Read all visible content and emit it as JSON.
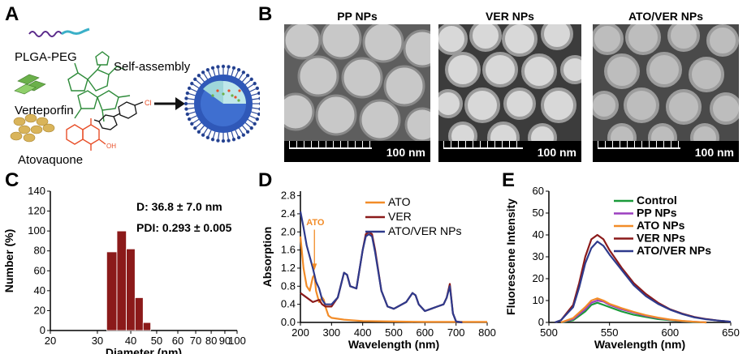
{
  "panels": {
    "A": "A",
    "B": "B",
    "C": "C",
    "D": "D",
    "E": "E"
  },
  "schematic": {
    "plga_label": "PLGA-PEG",
    "vp_label": "Verteporfin",
    "ato_label": "Atovaquone",
    "assembly_label": "Self-assembly",
    "cl": "Cl",
    "oh": "OH"
  },
  "tem": [
    {
      "title": "PP NPs",
      "scale": "100 nm"
    },
    {
      "title": "VER NPs",
      "scale": "100 nm"
    },
    {
      "title": "ATO/VER NPs",
      "scale": "100 nm"
    }
  ],
  "colors": {
    "bar": "#8b1a1a",
    "ato": "#f28c28",
    "ver": "#8b1a1a",
    "atover": "#2e3a8c",
    "control": "#1a9a3a",
    "pp": "#9b3fbf"
  },
  "chart_data": [
    {
      "type": "bar",
      "panel": "C",
      "categories": [
        34,
        37,
        40,
        43,
        46
      ],
      "values": [
        79,
        100,
        82,
        33,
        8
      ],
      "xlabel": "Diameter (nm)",
      "ylabel": "Number (%)",
      "xscale": "log",
      "xticks": [
        "20",
        "30",
        "40",
        "50",
        "60",
        "70",
        "80",
        "90",
        "100"
      ],
      "yticks": [
        "0",
        "20",
        "40",
        "60",
        "80",
        "100",
        "120",
        "140"
      ],
      "ylim": [
        0,
        140
      ],
      "annotations": [
        "D: 36.8 ± 7.0 nm",
        "PDI: 0.293 ± 0.005"
      ]
    },
    {
      "type": "line",
      "panel": "D",
      "xlabel": "Wavelength (nm)",
      "ylabel": "Absorption",
      "xlim": [
        200,
        800
      ],
      "ylim": [
        0,
        2.9
      ],
      "xticks": [
        "200",
        "300",
        "400",
        "500",
        "600",
        "700",
        "800"
      ],
      "yticks": [
        "0.0",
        "0.4",
        "0.8",
        "1.2",
        "1.6",
        "2.0",
        "2.4",
        "2.8"
      ],
      "annotation": "ATO",
      "series": [
        {
          "name": "ATO",
          "x": [
            200,
            210,
            220,
            230,
            240,
            245,
            250,
            260,
            270,
            275,
            280,
            290,
            300,
            320,
            340,
            360,
            400,
            500,
            600,
            700,
            800
          ],
          "y": [
            1.9,
            1.2,
            0.8,
            0.7,
            1.0,
            1.05,
            0.7,
            0.45,
            0.55,
            0.5,
            0.35,
            0.15,
            0.1,
            0.08,
            0.06,
            0.05,
            0.03,
            0.02,
            0.01,
            0.01,
            0.01
          ]
        },
        {
          "name": "VER",
          "x": [
            200,
            220,
            240,
            260,
            270,
            280,
            300,
            320,
            340,
            350,
            360,
            380,
            400,
            410,
            420,
            430,
            440,
            460,
            480,
            500,
            540,
            560,
            570,
            580,
            600,
            620,
            640,
            660,
            670,
            680,
            690,
            700,
            720
          ],
          "y": [
            0.65,
            0.55,
            0.45,
            0.5,
            0.4,
            0.35,
            0.35,
            0.55,
            1.1,
            1.05,
            0.8,
            0.75,
            1.6,
            1.95,
            2.0,
            1.95,
            1.6,
            0.7,
            0.35,
            0.3,
            0.45,
            0.65,
            0.6,
            0.4,
            0.25,
            0.3,
            0.35,
            0.4,
            0.55,
            0.85,
            0.2,
            0.02,
            0.0
          ]
        },
        {
          "name": "ATO/VER NPs",
          "x": [
            200,
            210,
            220,
            240,
            250,
            260,
            270,
            280,
            300,
            320,
            340,
            350,
            360,
            380,
            400,
            410,
            420,
            430,
            440,
            460,
            480,
            500,
            540,
            560,
            570,
            580,
            600,
            620,
            640,
            660,
            670,
            680,
            690,
            700,
            720
          ],
          "y": [
            2.45,
            2.1,
            1.7,
            1.2,
            0.9,
            0.75,
            0.5,
            0.4,
            0.4,
            0.55,
            1.1,
            1.05,
            0.8,
            0.75,
            1.6,
            1.9,
            1.95,
            1.9,
            1.55,
            0.7,
            0.35,
            0.3,
            0.45,
            0.65,
            0.6,
            0.4,
            0.25,
            0.3,
            0.35,
            0.4,
            0.55,
            0.8,
            0.2,
            0.02,
            0.0
          ]
        }
      ]
    },
    {
      "type": "line",
      "panel": "E",
      "xlabel": "Wavelength (nm)",
      "ylabel": "Fluorescene Intensity",
      "xlim": [
        500,
        650
      ],
      "ylim": [
        0,
        60
      ],
      "xticks": [
        "500",
        "550",
        "600",
        "650"
      ],
      "yticks": [
        "0",
        "10",
        "20",
        "30",
        "40",
        "50",
        "60"
      ],
      "series": [
        {
          "name": "Control",
          "x": [
            510,
            520,
            530,
            535,
            540,
            545,
            550,
            560,
            570,
            580,
            590,
            600,
            610,
            620,
            630
          ],
          "y": [
            0,
            1,
            5,
            8,
            9,
            8,
            7,
            5,
            3.5,
            2.5,
            1.5,
            1,
            0.5,
            0.2,
            0
          ]
        },
        {
          "name": "PP NPs",
          "x": [
            510,
            520,
            530,
            535,
            540,
            545,
            550,
            560,
            570,
            580,
            590,
            600,
            610,
            620,
            630
          ],
          "y": [
            0,
            1.5,
            6,
            9,
            10,
            9.5,
            8,
            6,
            4.5,
            3,
            2,
            1.2,
            0.6,
            0.3,
            0
          ]
        },
        {
          "name": "ATO NPs",
          "x": [
            510,
            520,
            530,
            535,
            540,
            545,
            550,
            560,
            570,
            580,
            590,
            600,
            610,
            620,
            630
          ],
          "y": [
            0,
            2,
            7,
            10,
            11,
            10,
            8.5,
            6.5,
            4.8,
            3.3,
            2.2,
            1.3,
            0.7,
            0.3,
            0
          ]
        },
        {
          "name": "VER NPs",
          "x": [
            505,
            510,
            520,
            525,
            530,
            535,
            540,
            545,
            550,
            560,
            570,
            580,
            590,
            600,
            610,
            620,
            630,
            640,
            650
          ],
          "y": [
            0,
            1,
            8,
            18,
            30,
            38,
            40,
            38,
            33,
            25,
            18,
            13,
            9,
            6,
            4,
            2.5,
            1.5,
            0.8,
            0.3
          ]
        },
        {
          "name": "ATO/VER NPs",
          "x": [
            505,
            510,
            520,
            525,
            530,
            535,
            540,
            545,
            550,
            560,
            570,
            580,
            590,
            600,
            610,
            620,
            630,
            640,
            650
          ],
          "y": [
            0,
            1,
            7,
            16,
            27,
            34,
            37,
            35,
            31,
            24,
            17,
            12,
            8.5,
            5.8,
            3.8,
            2.3,
            1.4,
            0.8,
            0.3
          ]
        }
      ]
    }
  ]
}
